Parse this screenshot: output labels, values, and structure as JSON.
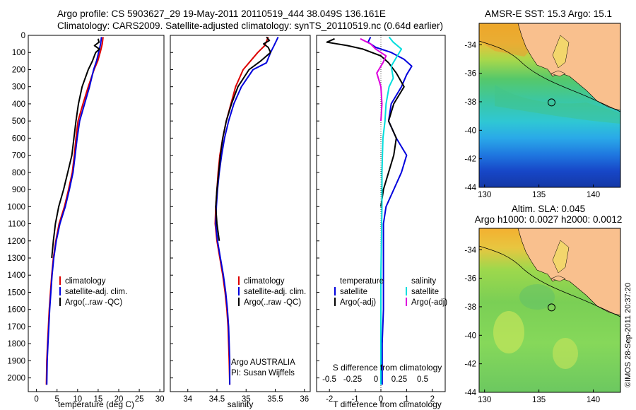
{
  "header": {
    "line1": "Argo profile: CS 5903627_29 19-May-2011 20110519_444 38.049S 136.161E",
    "line2": "Climatology: CARS2009. Satellite-adjusted climatology: synTS_20110519.nc (0.64d earlier)"
  },
  "colors": {
    "climatology": "#dd0000",
    "satellite": "#0000dd",
    "argo": "#000000",
    "salinity_satellite": "#00dddd",
    "salinity_argo": "#dd00dd",
    "land": "#f9c08e"
  },
  "chart_data": [
    {
      "type": "line",
      "panel": "temperature",
      "xlabel": "temperature (deg C)",
      "ylabel": "",
      "xlim": [
        -2,
        31
      ],
      "ylim": [
        2080,
        0
      ],
      "xticks": [
        "0",
        "5",
        "10",
        "15",
        "20",
        "25",
        "30"
      ],
      "yticks": [
        "0",
        "100",
        "200",
        "300",
        "400",
        "500",
        "600",
        "700",
        "800",
        "900",
        "1000",
        "1100",
        "1200",
        "1300",
        "1400",
        "1500",
        "1600",
        "1700",
        "1800",
        "1900",
        "2000"
      ],
      "legend": [
        "climatology",
        "satellite-adj. clim.",
        "Argo(..raw -QC)"
      ],
      "series": [
        {
          "name": "climatology",
          "x": [
            16.2,
            16.0,
            15.6,
            14.9,
            14.0,
            12.6,
            11.3,
            10.1,
            9.6,
            9.2,
            8.7,
            7.8,
            6.8,
            5.5,
            4.7,
            4.1,
            3.7,
            3.4,
            3.1,
            2.9,
            2.7,
            2.5,
            2.4
          ],
          "y": [
            10,
            50,
            90,
            150,
            200,
            300,
            400,
            500,
            600,
            700,
            800,
            900,
            1000,
            1100,
            1200,
            1300,
            1400,
            1500,
            1600,
            1700,
            1800,
            1900,
            2040
          ]
        },
        {
          "name": "satellite-adj. clim.",
          "x": [
            15.8,
            15.6,
            15.2,
            14.6,
            13.9,
            12.9,
            11.7,
            10.5,
            9.9,
            9.4,
            8.9,
            8.0,
            7.0,
            5.7,
            4.8,
            4.2,
            3.8,
            3.5,
            3.2,
            3.0,
            2.8,
            2.6,
            2.5
          ],
          "y": [
            10,
            50,
            90,
            150,
            200,
            300,
            400,
            500,
            600,
            700,
            800,
            900,
            1000,
            1100,
            1200,
            1300,
            1400,
            1500,
            1600,
            1700,
            1800,
            1900,
            2040
          ]
        },
        {
          "name": "Argo(..raw -QC)",
          "x": [
            15.0,
            15.2,
            14.1,
            15.3,
            14.4,
            13.6,
            12.6,
            11.1,
            10.2,
            9.6,
            9.1,
            8.6,
            7.6,
            6.6,
            5.4,
            4.6,
            4.1,
            3.7
          ],
          "y": [
            20,
            40,
            60,
            80,
            100,
            150,
            200,
            300,
            400,
            500,
            600,
            700,
            800,
            900,
            1000,
            1100,
            1200,
            1300
          ]
        }
      ]
    },
    {
      "type": "line",
      "panel": "salinity",
      "xlabel": "salinity",
      "xlim": [
        33.7,
        36.1
      ],
      "ylim": [
        2080,
        0
      ],
      "xticks": [
        "34",
        "34.5",
        "35",
        "35.5",
        "36"
      ],
      "legend": [
        "climatology",
        "satellite-adj. clim.",
        "Argo(..raw -QC)"
      ],
      "annotation": [
        "Argo AUSTRALIA",
        "PI: Susan Wijffels"
      ],
      "series": [
        {
          "name": "climatology",
          "x": [
            35.38,
            35.32,
            35.2,
            35.05,
            34.95,
            34.82,
            34.74,
            34.66,
            34.6,
            34.55,
            34.52,
            34.5,
            34.48,
            34.47,
            34.5,
            34.55,
            34.6,
            34.64,
            34.67,
            34.69,
            34.7,
            34.71,
            34.72
          ],
          "y": [
            10,
            60,
            100,
            160,
            200,
            300,
            400,
            500,
            600,
            700,
            800,
            900,
            1000,
            1100,
            1200,
            1300,
            1400,
            1500,
            1600,
            1700,
            1800,
            1900,
            2040
          ]
        },
        {
          "name": "satellite-adj. clim.",
          "x": [
            35.55,
            35.48,
            35.42,
            35.35,
            35.12,
            34.92,
            34.79,
            34.7,
            34.63,
            34.58,
            34.54,
            34.51,
            34.49,
            34.48,
            34.51,
            34.56,
            34.61,
            34.65,
            34.68,
            34.7,
            34.71,
            34.72,
            34.72
          ],
          "y": [
            10,
            60,
            100,
            160,
            200,
            300,
            400,
            500,
            600,
            700,
            800,
            900,
            1000,
            1100,
            1200,
            1300,
            1400,
            1500,
            1600,
            1700,
            1800,
            1900,
            2040
          ]
        },
        {
          "name": "Argo(..raw -QC)",
          "x": [
            35.35,
            35.4,
            35.3,
            35.38,
            35.42,
            35.25,
            35.05,
            34.86,
            34.75,
            34.66,
            34.6,
            34.56,
            34.53,
            34.5,
            34.48,
            34.5,
            34.54
          ],
          "y": [
            10,
            30,
            50,
            70,
            100,
            150,
            200,
            300,
            400,
            500,
            600,
            700,
            800,
            900,
            1000,
            1100,
            1200
          ]
        }
      ]
    },
    {
      "type": "line",
      "panel": "difference",
      "xlabel": "T difference from climatology",
      "xlabel_top": "S difference from climatology",
      "xlim": [
        -2.5,
        2.5
      ],
      "ylim": [
        2080,
        0
      ],
      "xticks": [
        "-2",
        "-1",
        "0",
        "1",
        "2"
      ],
      "xticks_top": [
        "-0.5",
        "-0.25",
        "0",
        "0.25",
        "0.5"
      ],
      "legend_temperature": [
        "temperature",
        "satellite",
        "Argo(-adj)"
      ],
      "legend_salinity": [
        "salinity",
        "satellite",
        "Argo(-adj)"
      ],
      "series": [
        {
          "name": "satellite",
          "quantity": "T",
          "x": [
            -0.4,
            -0.5,
            -0.2,
            0.4,
            0.9,
            1.2,
            1.0,
            0.8,
            0.4,
            0.3,
            0.6,
            1.0,
            0.8,
            0.5,
            0.2,
            0.1,
            0.1,
            0.1,
            0.1,
            0.05,
            0.05
          ],
          "y": [
            10,
            40,
            70,
            100,
            140,
            180,
            230,
            300,
            400,
            500,
            600,
            700,
            800,
            900,
            1000,
            1100,
            1200,
            1400,
            1600,
            1800,
            2040
          ]
        },
        {
          "name": "Argo(-adj)",
          "quantity": "T",
          "x": [
            -1.8,
            -2.1,
            -1.3,
            -0.7,
            0.0,
            0.3,
            0.6,
            0.9,
            0.5,
            0.3,
            0.6,
            0.5,
            0.3,
            0.1,
            0.0
          ],
          "y": [
            20,
            40,
            60,
            80,
            120,
            160,
            220,
            300,
            400,
            500,
            600,
            700,
            800,
            900,
            1000
          ]
        },
        {
          "name": "satellite",
          "quantity": "S",
          "x": [
            0.08,
            0.12,
            0.2,
            0.15,
            0.1,
            0.12,
            0.08,
            0.05,
            0.04,
            0.02,
            0.01,
            0.01,
            0.0,
            0.0
          ],
          "y": [
            10,
            40,
            80,
            130,
            180,
            250,
            300,
            400,
            500,
            600,
            800,
            1000,
            1400,
            2040
          ]
        },
        {
          "name": "Argo(-adj)",
          "quantity": "S",
          "x": [
            -0.2,
            -0.1,
            -0.05,
            0.05,
            0.02,
            -0.04,
            0.0,
            0.01,
            0.0
          ],
          "y": [
            20,
            50,
            80,
            120,
            160,
            220,
            300,
            400,
            500
          ]
        }
      ]
    }
  ],
  "maps": [
    {
      "title_lines": [
        "AMSR-E SST: 15.3 Argo: 15.1"
      ],
      "xticks": [
        "130",
        "135",
        "140"
      ],
      "yticks": [
        "-34",
        "-36",
        "-38",
        "-40",
        "-42",
        "-44"
      ],
      "xlim": [
        129.5,
        142.5
      ],
      "ylim": [
        -44,
        -32.5
      ],
      "argo_position": [
        136.161,
        -38.049
      ]
    },
    {
      "title_lines": [
        "Altim. SLA: 0.045",
        "Argo h1000: 0.0027 h2000: 0.0012"
      ],
      "xticks": [
        "130",
        "135",
        "140"
      ],
      "yticks": [
        "-34",
        "-36",
        "-38",
        "-40",
        "-42",
        "-44"
      ],
      "xlim": [
        129.5,
        142.5
      ],
      "ylim": [
        -44,
        -32.5
      ],
      "argo_position": [
        136.161,
        -38.049
      ]
    }
  ],
  "stamp": "©IMOS 28-Sep-2011 20:37:20"
}
